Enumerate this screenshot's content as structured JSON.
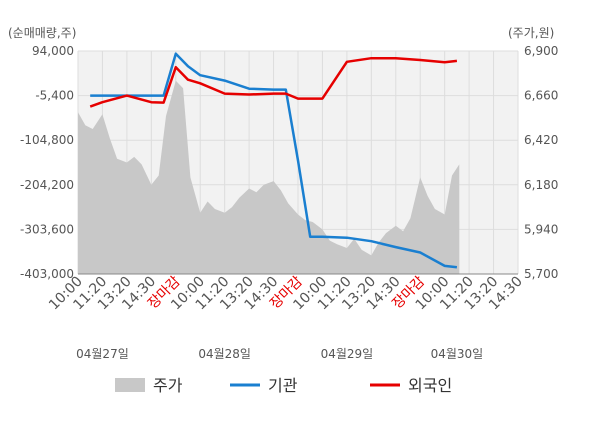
{
  "chart_data": {
    "type": "line",
    "left_axis_title": "(순매매량,주)",
    "right_axis_title": "(주가,원)",
    "left_ticks": [
      "94,000",
      "-5,400",
      "-104,800",
      "-204,200",
      "-303,600",
      "-403,000"
    ],
    "right_ticks": [
      "6,900",
      "6,660",
      "6,420",
      "6,180",
      "5,940",
      "5,700"
    ],
    "left_range": [
      -403000,
      94000
    ],
    "right_range": [
      5700,
      6900
    ],
    "x_ticks": [
      {
        "label": "10:00",
        "red": false
      },
      {
        "label": "11:20",
        "red": false
      },
      {
        "label": "13:20",
        "red": false
      },
      {
        "label": "14:30",
        "red": false
      },
      {
        "label": "장마감",
        "red": true
      },
      {
        "label": "10:00",
        "red": false
      },
      {
        "label": "11:20",
        "red": false
      },
      {
        "label": "13:20",
        "red": false
      },
      {
        "label": "14:30",
        "red": false
      },
      {
        "label": "장마감",
        "red": true
      },
      {
        "label": "10:00",
        "red": false
      },
      {
        "label": "11:20",
        "red": false
      },
      {
        "label": "13:20",
        "red": false
      },
      {
        "label": "14:30",
        "red": false
      },
      {
        "label": "장마감",
        "red": true
      },
      {
        "label": "10:00",
        "red": false
      },
      {
        "label": "11:20",
        "red": false
      },
      {
        "label": "13:20",
        "red": false
      },
      {
        "label": "14:30",
        "red": false
      }
    ],
    "dates": [
      "04월27일",
      "04월28일",
      "04월29일",
      "04월30일"
    ],
    "date_tick_index": [
      1,
      6,
      11,
      15.5
    ],
    "series": [
      {
        "name": "기관",
        "axis": "left",
        "color": "#1a7fd0",
        "x": [
          0.5,
          1,
          2,
          3,
          3.5,
          4,
          4.5,
          5,
          6,
          7,
          8,
          8.5,
          9,
          9.5,
          10,
          11,
          12,
          13,
          14,
          15,
          15.5
        ],
        "y": [
          -5400,
          -5400,
          -5400,
          -5400,
          -5400,
          88000,
          60000,
          40000,
          28000,
          10000,
          8000,
          8000,
          -150000,
          -320000,
          -320000,
          -322000,
          -330000,
          -343000,
          -355000,
          -385000,
          -388000
        ]
      },
      {
        "name": "외국인",
        "axis": "left",
        "color": "#e60000",
        "x": [
          0.5,
          1,
          2,
          3,
          3.5,
          4,
          4.5,
          5,
          6,
          7,
          8,
          8.5,
          9,
          9.5,
          10,
          11,
          12,
          13,
          14,
          15,
          15.5
        ],
        "y": [
          -30000,
          -20000,
          -5400,
          -20000,
          -21000,
          58000,
          30000,
          22000,
          -1000,
          -3000,
          -1000,
          -1000,
          -12000,
          -12000,
          -12000,
          70000,
          78000,
          78000,
          74000,
          69000,
          72000
        ]
      },
      {
        "name": "주가",
        "axis": "right",
        "color": "#c8c8c8",
        "x": [
          0,
          0.3,
          0.6,
          1,
          1.3,
          1.6,
          2,
          2.3,
          2.6,
          3,
          3.3,
          3.6,
          4,
          4.3,
          4.6,
          5,
          5.3,
          5.6,
          6,
          6.3,
          6.6,
          7,
          7.3,
          7.6,
          8,
          8.3,
          8.6,
          9,
          9.3,
          9.6,
          10,
          10.3,
          10.6,
          11,
          11.3,
          11.6,
          12,
          12.3,
          12.6,
          13,
          13.3,
          13.6,
          14,
          14.3,
          14.6,
          15,
          15.3,
          15.6
        ],
        "y": [
          6570,
          6500,
          6480,
          6560,
          6430,
          6320,
          6300,
          6330,
          6290,
          6180,
          6230,
          6550,
          6740,
          6700,
          6220,
          6030,
          6090,
          6050,
          6030,
          6060,
          6110,
          6160,
          6140,
          6180,
          6200,
          6150,
          6080,
          6020,
          5990,
          5980,
          5940,
          5880,
          5860,
          5840,
          5890,
          5830,
          5800,
          5870,
          5920,
          5960,
          5930,
          6000,
          6220,
          6120,
          6050,
          6020,
          6230,
          6290
        ]
      }
    ]
  },
  "legend": [
    {
      "label": "주가",
      "kind": "area",
      "color": "#c8c8c8"
    },
    {
      "label": "기관",
      "kind": "line",
      "color": "#1a7fd0"
    },
    {
      "label": "외국인",
      "kind": "line",
      "color": "#e60000"
    }
  ]
}
